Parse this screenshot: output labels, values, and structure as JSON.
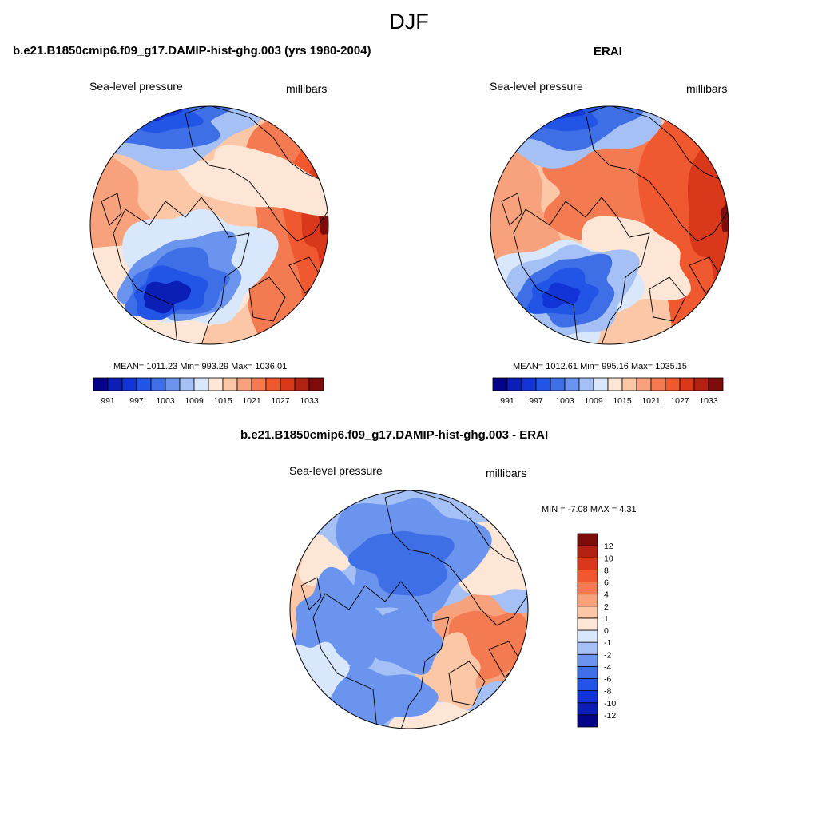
{
  "figure": {
    "title": "DJF"
  },
  "panels": [
    {
      "title": "b.e21.B1850cmip6.f09_g17.DAMIP-hist-ghg.003 (yrs 1980-2004)",
      "left_label": "Sea-level pressure",
      "right_label": "millibars",
      "stats": "MEAN= 1011.23  Min= 993.29  Max= 1036.01"
    },
    {
      "title": "ERAI",
      "left_label": "Sea-level pressure",
      "right_label": "millibars",
      "stats": "MEAN= 1012.61  Min= 995.16  Max= 1035.15"
    },
    {
      "title": "b.e21.B1850cmip6.f09_g17.DAMIP-hist-ghg.003 - ERAI",
      "left_label": "Sea-level pressure",
      "right_label": "millibars",
      "stats": "MIN =  -7.08 MAX =   4.31"
    }
  ],
  "chart_data": [
    {
      "type": "heatmap",
      "projection": "north-polar-stereographic",
      "title": "b.e21.B1850cmip6.f09_g17.DAMIP-hist-ghg.003 (yrs 1980-2004)",
      "variable": "Sea-level pressure",
      "units": "millibars",
      "stats": {
        "mean": 1011.23,
        "min": 993.29,
        "max": 1036.01
      },
      "colorbar": {
        "orientation": "horizontal",
        "levels": [
          991,
          994,
          997,
          1000,
          1003,
          1006,
          1009,
          1012,
          1015,
          1018,
          1021,
          1024,
          1027,
          1030,
          1033
        ],
        "tick_labels": [
          "991",
          "997",
          "1003",
          "1009",
          "1015",
          "1021",
          "1027",
          "1033"
        ],
        "colors": [
          "#04048a",
          "#0b1fb7",
          "#1234d6",
          "#2255e6",
          "#3f6fe6",
          "#6b94ee",
          "#a4c0f5",
          "#d8e7fb",
          "#fde6d6",
          "#fbc7a7",
          "#f7a27d",
          "#f47a51",
          "#f0582f",
          "#d9391a",
          "#b22212",
          "#7d0c0a"
        ]
      }
    },
    {
      "type": "heatmap",
      "projection": "north-polar-stereographic",
      "title": "ERAI",
      "variable": "Sea-level pressure",
      "units": "millibars",
      "stats": {
        "mean": 1012.61,
        "min": 995.16,
        "max": 1035.15
      },
      "colorbar": {
        "orientation": "horizontal",
        "levels": [
          991,
          994,
          997,
          1000,
          1003,
          1006,
          1009,
          1012,
          1015,
          1018,
          1021,
          1024,
          1027,
          1030,
          1033
        ],
        "tick_labels": [
          "991",
          "997",
          "1003",
          "1009",
          "1015",
          "1021",
          "1027",
          "1033"
        ],
        "colors": [
          "#04048a",
          "#0b1fb7",
          "#1234d6",
          "#2255e6",
          "#3f6fe6",
          "#6b94ee",
          "#a4c0f5",
          "#d8e7fb",
          "#fde6d6",
          "#fbc7a7",
          "#f7a27d",
          "#f47a51",
          "#f0582f",
          "#d9391a",
          "#b22212",
          "#7d0c0a"
        ]
      }
    },
    {
      "type": "heatmap",
      "projection": "north-polar-stereographic",
      "title": "b.e21.B1850cmip6.f09_g17.DAMIP-hist-ghg.003 - ERAI",
      "variable": "Sea-level pressure",
      "units": "millibars",
      "stats": {
        "min": -7.08,
        "max": 4.31
      },
      "colorbar": {
        "orientation": "vertical",
        "levels": [
          -12,
          -10,
          -8,
          -6,
          -4,
          -2,
          -1,
          0,
          1,
          2,
          4,
          6,
          8,
          10,
          12
        ],
        "tick_labels": [
          "-12",
          "-10",
          "-8",
          "-6",
          "-4",
          "-2",
          "-1",
          "0",
          "1",
          "2",
          "4",
          "6",
          "8",
          "10",
          "12"
        ],
        "colors": [
          "#04048a",
          "#0b1fb7",
          "#1234d6",
          "#2255e6",
          "#3f6fe6",
          "#6b94ee",
          "#a4c0f5",
          "#d8e7fb",
          "#fde6d6",
          "#fbc7a7",
          "#f7a27d",
          "#f47a51",
          "#f0582f",
          "#d9391a",
          "#b22212",
          "#7d0c0a"
        ]
      }
    }
  ]
}
